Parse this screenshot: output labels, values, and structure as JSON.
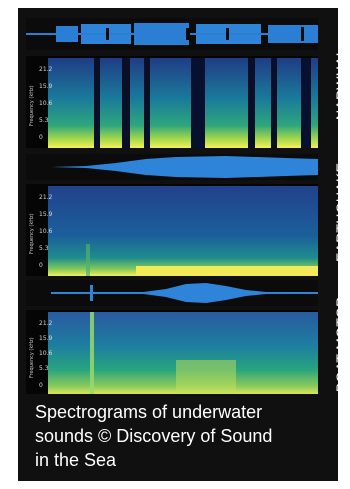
{
  "labels": {
    "narwhal": "NARWHAL",
    "earthquake": "EARTHQUAKE",
    "boat_motor": "BOAT MOTOR"
  },
  "axis": {
    "ylabel": "Frequency (kHz)",
    "ticks": [
      "21.2",
      "15.9",
      "10.6",
      "5.3",
      "0"
    ]
  },
  "caption": {
    "line1": "Spectrograms of underwater",
    "line2": "sounds © Discovery of Sound",
    "line3": "in the Sea"
  }
}
